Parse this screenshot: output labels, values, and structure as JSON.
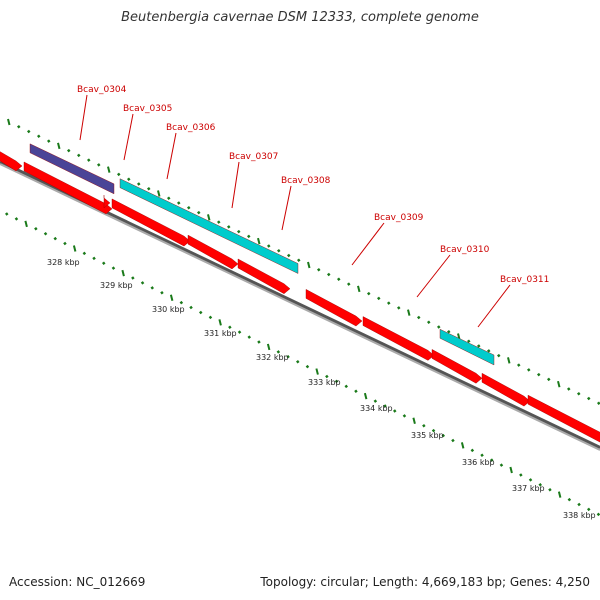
{
  "title": "Beutenbergia cavernae DSM 12333, complete genome",
  "accession_text": "Accession: NC_012669",
  "summary_text": "Topology: circular; Length: 4,669,183 bp; Genes: 4,250",
  "colors": {
    "forward_gene": "#ff0000",
    "reverse_gene": "#ff0000",
    "gene_violet": "#4a4497",
    "gene_cyan": "#00cccc",
    "backbone": "#888888",
    "ticks": "#1a7a1a",
    "label_color": "#cc0000"
  },
  "genes": [
    {
      "id": "Bcav_0304",
      "label": "Bcav_0304"
    },
    {
      "id": "Bcav_0305",
      "label": "Bcav_0305"
    },
    {
      "id": "Bcav_0306",
      "label": "Bcav_0306"
    },
    {
      "id": "Bcav_0307",
      "label": "Bcav_0307"
    },
    {
      "id": "Bcav_0308",
      "label": "Bcav_0308"
    },
    {
      "id": "Bcav_0309",
      "label": "Bcav_0309"
    },
    {
      "id": "Bcav_0310",
      "label": "Bcav_0310"
    },
    {
      "id": "Bcav_0311",
      "label": "Bcav_0311"
    }
  ],
  "kbp_ticks": [
    "328 kbp",
    "329 kbp",
    "330 kbp",
    "331 kbp",
    "332 kbp",
    "333 kbp",
    "334 kbp",
    "335 kbp",
    "336 kbp",
    "337 kbp",
    "338 kbp"
  ]
}
